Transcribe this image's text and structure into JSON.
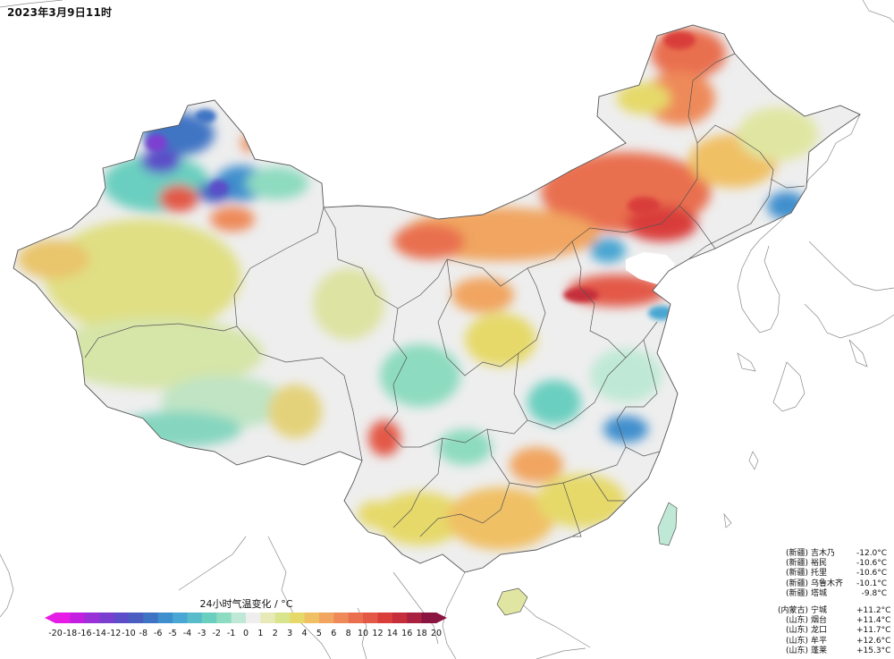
{
  "title": "2023年3月9日11时",
  "legend": {
    "title": "24小时气温变化 / °C",
    "ticks": [
      "-20",
      "-18",
      "-16",
      "-14",
      "-12",
      "-10",
      "-8",
      "-6",
      "-5",
      "-4",
      "-3",
      "-2",
      "-1",
      "0",
      "1",
      "2",
      "3",
      "4",
      "5",
      "6",
      "8",
      "10",
      "12",
      "14",
      "16",
      "18",
      "20"
    ],
    "colors": [
      "#e61be6",
      "#c21fe0",
      "#9a30d8",
      "#7b3fd0",
      "#5c4dc8",
      "#4a5ec2",
      "#3f74c4",
      "#3f8fce",
      "#4aa6d2",
      "#59bccb",
      "#6bcfc0",
      "#8ddbc0",
      "#bfe9d6",
      "#eeeeee",
      "#e7eab6",
      "#d9e58c",
      "#e6d96a",
      "#f0c065",
      "#f1a561",
      "#ee8a5a",
      "#e96f4f",
      "#e35846",
      "#d93e3b",
      "#c52e3a",
      "#a8213e",
      "#8a1540"
    ]
  },
  "stations_cold": [
    {
      "prov": "(新疆)",
      "name": "吉木乃",
      "value": "-12.0°C"
    },
    {
      "prov": "(新疆)",
      "name": "裕民",
      "value": "-10.6°C"
    },
    {
      "prov": "(新疆)",
      "name": "托里",
      "value": "-10.6°C"
    },
    {
      "prov": "(新疆)",
      "name": "乌鲁木齐",
      "value": "-10.1°C"
    },
    {
      "prov": "(新疆)",
      "name": "塔城",
      "value": "-9.8°C"
    }
  ],
  "stations_warm": [
    {
      "prov": "(内蒙古)",
      "name": "宁城",
      "value": "+11.2°C"
    },
    {
      "prov": "(山东)",
      "name": "烟台",
      "value": "+11.4°C"
    },
    {
      "prov": "(山东)",
      "name": "龙口",
      "value": "+11.7°C"
    },
    {
      "prov": "(山东)",
      "name": "牟平",
      "value": "+12.6°C"
    },
    {
      "prov": "(山东)",
      "name": "蓬莱",
      "value": "+15.3°C"
    }
  ]
}
